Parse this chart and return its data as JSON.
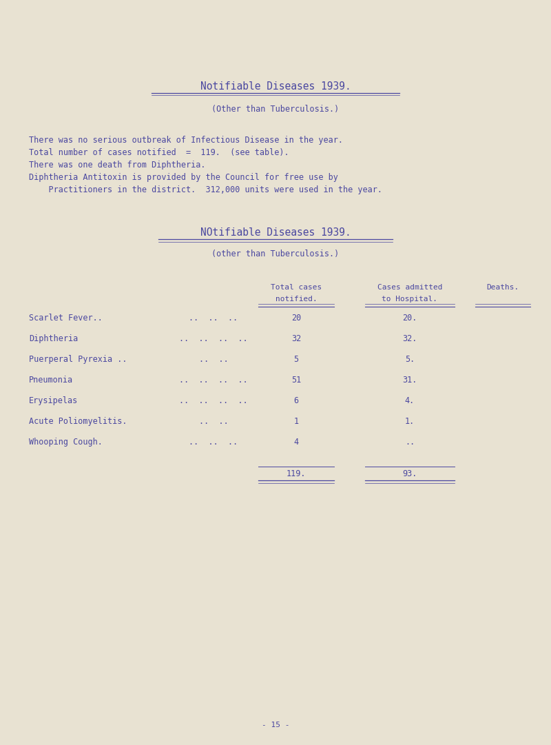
{
  "bg_color": "#e8e2d2",
  "text_color": "#4a47a0",
  "title1": "Notifiable Diseases 1939.",
  "subtitle1": "(Other than Tuberculosis.)",
  "para1_line1": "There was no serious outbreak of Infectious Disease in the year.",
  "para1_line2": "Total number of cases notified  =  119.  (see table).",
  "para1_line3": "There was one death from Diphtheria.",
  "para1_line4": "Diphtheria Antitoxin is provided by the Council for free use by",
  "para1_line5": "    Practitioners in the district.  312,000 units were used in the year.",
  "title2": "NOtifiable Diseases 1939.",
  "subtitle2": "(other than Tuberculosis.)",
  "col_header1": "Total cases",
  "col_header2": "notified.",
  "col_header3": "Cases admitted",
  "col_header4": "to Hospital.",
  "col_header5": "Deaths.",
  "diseases": [
    "Scarlet Fever..",
    "Diphtheria",
    "Puerperal Pyrexia ..",
    "Pneumonia",
    "Erysipelas",
    "Acute Poliomyelitis.",
    "Whooping Cough."
  ],
  "dots_col": [
    "..  ..  ..",
    "..  ..  ..  ..",
    "..  ..",
    "..  ..  ..  ..",
    "..  ..  ..  ..",
    "..  ..",
    "..  ..  .."
  ],
  "notified": [
    "20",
    "32",
    "5",
    "51",
    "6",
    "1",
    "4"
  ],
  "hospital": [
    "20.",
    "32.",
    "5.",
    "31.",
    "4.",
    "1.",
    ".."
  ],
  "deaths": [
    "",
    "",
    "",
    "",
    "",
    "",
    ""
  ],
  "total_notified": "119.",
  "total_hospital": "93.",
  "page_num": "- 15 -"
}
